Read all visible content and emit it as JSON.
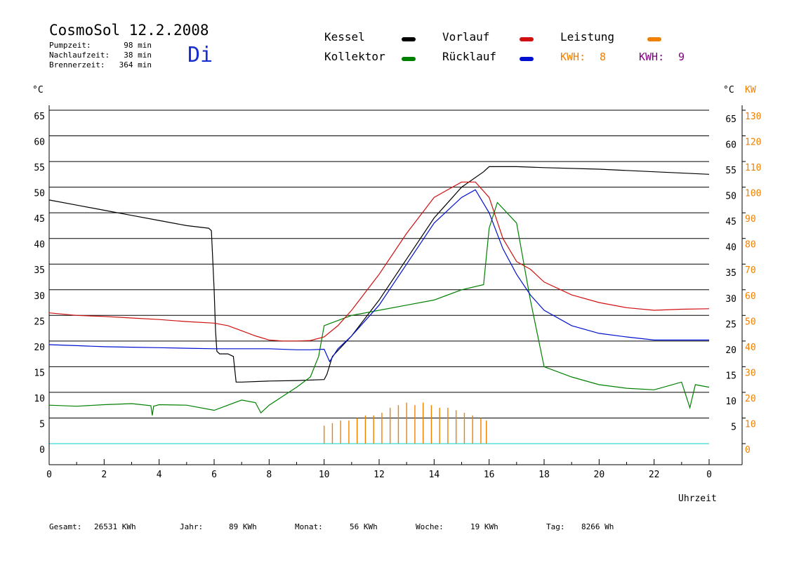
{
  "header": {
    "title": "CosmoSol 12.2.2008",
    "stats": [
      {
        "label": "Pumpzeit:",
        "value": "98 min"
      },
      {
        "label": "Nachlaufzeit:",
        "value": "38 min"
      },
      {
        "label": "Brennerzeit:",
        "value": "364 min"
      }
    ],
    "weekday": "Di"
  },
  "legend": {
    "items": [
      {
        "label": "Kessel",
        "color": "#000000"
      },
      {
        "label": "Kollektor",
        "color": "#008000"
      },
      {
        "label": "Vorlauf",
        "color": "#d01010"
      },
      {
        "label": "Rücklauf",
        "color": "#0010d0"
      },
      {
        "label": "Leistung",
        "color": "#f08000"
      }
    ],
    "kwh": [
      {
        "label": "KWH:",
        "value": "8",
        "color": "#f08000"
      },
      {
        "label": "KWH:",
        "value": "9",
        "color": "#800080"
      }
    ]
  },
  "axes": {
    "left_unit": "°C",
    "right_unit_temp": "°C",
    "right_unit_power": "KW",
    "x_label": "Uhrzeit",
    "x_ticks": [
      "0",
      "2",
      "4",
      "6",
      "8",
      "10",
      "12",
      "14",
      "16",
      "18",
      "20",
      "22",
      "0"
    ],
    "y_ticks": [
      "0",
      "5",
      "10",
      "15",
      "20",
      "25",
      "30",
      "35",
      "40",
      "45",
      "50",
      "55",
      "60",
      "65"
    ],
    "right_ticks": [
      "5",
      "10",
      "15",
      "20",
      "25",
      "30",
      "35",
      "40",
      "45",
      "50",
      "55",
      "60",
      "65"
    ],
    "power_ticks": [
      "0",
      "10",
      "20",
      "30",
      "40",
      "50",
      "60",
      "70",
      "80",
      "90",
      "100",
      "110",
      "120",
      "130"
    ]
  },
  "footer": [
    {
      "label": "Gesamt:",
      "value": "26531 KWh"
    },
    {
      "label": "Jahr:",
      "value": "89 KWh"
    },
    {
      "label": "Monat:",
      "value": "56 KWh"
    },
    {
      "label": "Woche:",
      "value": "19 KWh"
    },
    {
      "label": "Tag:",
      "value": "8266 Wh"
    }
  ],
  "chart_data": {
    "type": "line",
    "xlim": [
      0,
      24
    ],
    "ylim": [
      0,
      65
    ],
    "y2lim": [
      0,
      130
    ],
    "grid": true,
    "series": [
      {
        "name": "Kessel",
        "color": "#000000",
        "x": [
          0,
          1,
          2,
          3,
          4,
          5,
          5.8,
          5.9,
          6.0,
          6.05,
          6.1,
          6.2,
          6.5,
          6.7,
          6.8,
          7,
          8,
          9,
          10,
          10.1,
          10.3,
          11,
          12,
          13,
          14,
          15,
          15.8,
          16,
          17,
          18,
          20,
          22,
          24
        ],
        "y": [
          47.5,
          46.5,
          45.5,
          44.5,
          43.5,
          42.5,
          42,
          41.5,
          30,
          22,
          18,
          17.5,
          17.5,
          17,
          12,
          12,
          12.2,
          12.3,
          12.5,
          13.5,
          17,
          21,
          28,
          36,
          44,
          50,
          53,
          54,
          54,
          53.8,
          53.5,
          53,
          52.5
        ]
      },
      {
        "name": "Kollektor",
        "color": "#008000",
        "x": [
          0,
          1,
          2,
          3,
          3.7,
          3.75,
          3.8,
          4,
          5,
          6,
          6.5,
          7,
          7.5,
          7.7,
          8,
          9,
          9.5,
          9.8,
          10,
          10.5,
          11,
          12,
          13,
          14,
          15,
          15.8,
          16,
          16.3,
          17,
          17.5,
          18,
          19,
          20,
          21,
          22,
          23,
          23.3,
          23.5,
          24
        ],
        "y": [
          7.5,
          7.3,
          7.6,
          7.8,
          7.4,
          5.5,
          7.3,
          7.6,
          7.5,
          6.5,
          7.5,
          8.5,
          8,
          6,
          7.5,
          11,
          13,
          17,
          23,
          24,
          25,
          26,
          27,
          28,
          30,
          31,
          42,
          47,
          43,
          28,
          15,
          13,
          11.5,
          10.8,
          10.5,
          12,
          7,
          11.5,
          11
        ]
      },
      {
        "name": "Vorlauf",
        "color": "#d01010",
        "x": [
          0,
          1,
          2,
          3,
          4,
          5,
          6,
          6.5,
          7,
          7.5,
          8,
          8.5,
          9,
          9.5,
          10,
          10.5,
          11,
          12,
          13,
          14,
          15,
          15.5,
          16,
          16.5,
          17,
          17.5,
          18,
          19,
          20,
          21,
          22,
          23,
          24
        ],
        "y": [
          25.5,
          25,
          24.8,
          24.5,
          24.2,
          23.8,
          23.5,
          23,
          22,
          21,
          20.2,
          20,
          20,
          20.1,
          20.8,
          23,
          26,
          33,
          41,
          48,
          51,
          51,
          48,
          40,
          35.5,
          34,
          31.5,
          29,
          27.5,
          26.5,
          26,
          26.2,
          26.3
        ]
      },
      {
        "name": "Rücklauf",
        "color": "#0010d0",
        "x": [
          0,
          1,
          2,
          3,
          4,
          5,
          6,
          7,
          8,
          9,
          9.5,
          10,
          10.2,
          10.5,
          11,
          12,
          13,
          14,
          15,
          15.5,
          16,
          16.5,
          17,
          17.5,
          18,
          19,
          20,
          21,
          22,
          23,
          24
        ],
        "y": [
          19.3,
          19.1,
          18.9,
          18.8,
          18.7,
          18.6,
          18.5,
          18.5,
          18.5,
          18.3,
          18.3,
          18.4,
          16,
          18.5,
          21,
          27,
          35,
          43,
          48,
          49.5,
          45,
          38,
          33,
          29,
          26,
          23,
          21.5,
          20.8,
          20.2,
          20.2,
          20.2
        ]
      }
    ],
    "power": {
      "name": "Leistung",
      "unit": "KW",
      "x": [
        10.0,
        10.3,
        10.6,
        10.9,
        11.2,
        11.5,
        11.8,
        12.1,
        12.4,
        12.7,
        13.0,
        13.3,
        13.6,
        13.9,
        14.2,
        14.5,
        14.8,
        15.1,
        15.4,
        15.7,
        15.9
      ],
      "y": [
        7,
        8,
        9,
        9,
        10,
        11,
        11,
        12,
        14,
        15,
        16,
        15,
        16,
        15,
        14,
        14,
        13,
        12,
        11,
        10,
        9
      ]
    }
  }
}
